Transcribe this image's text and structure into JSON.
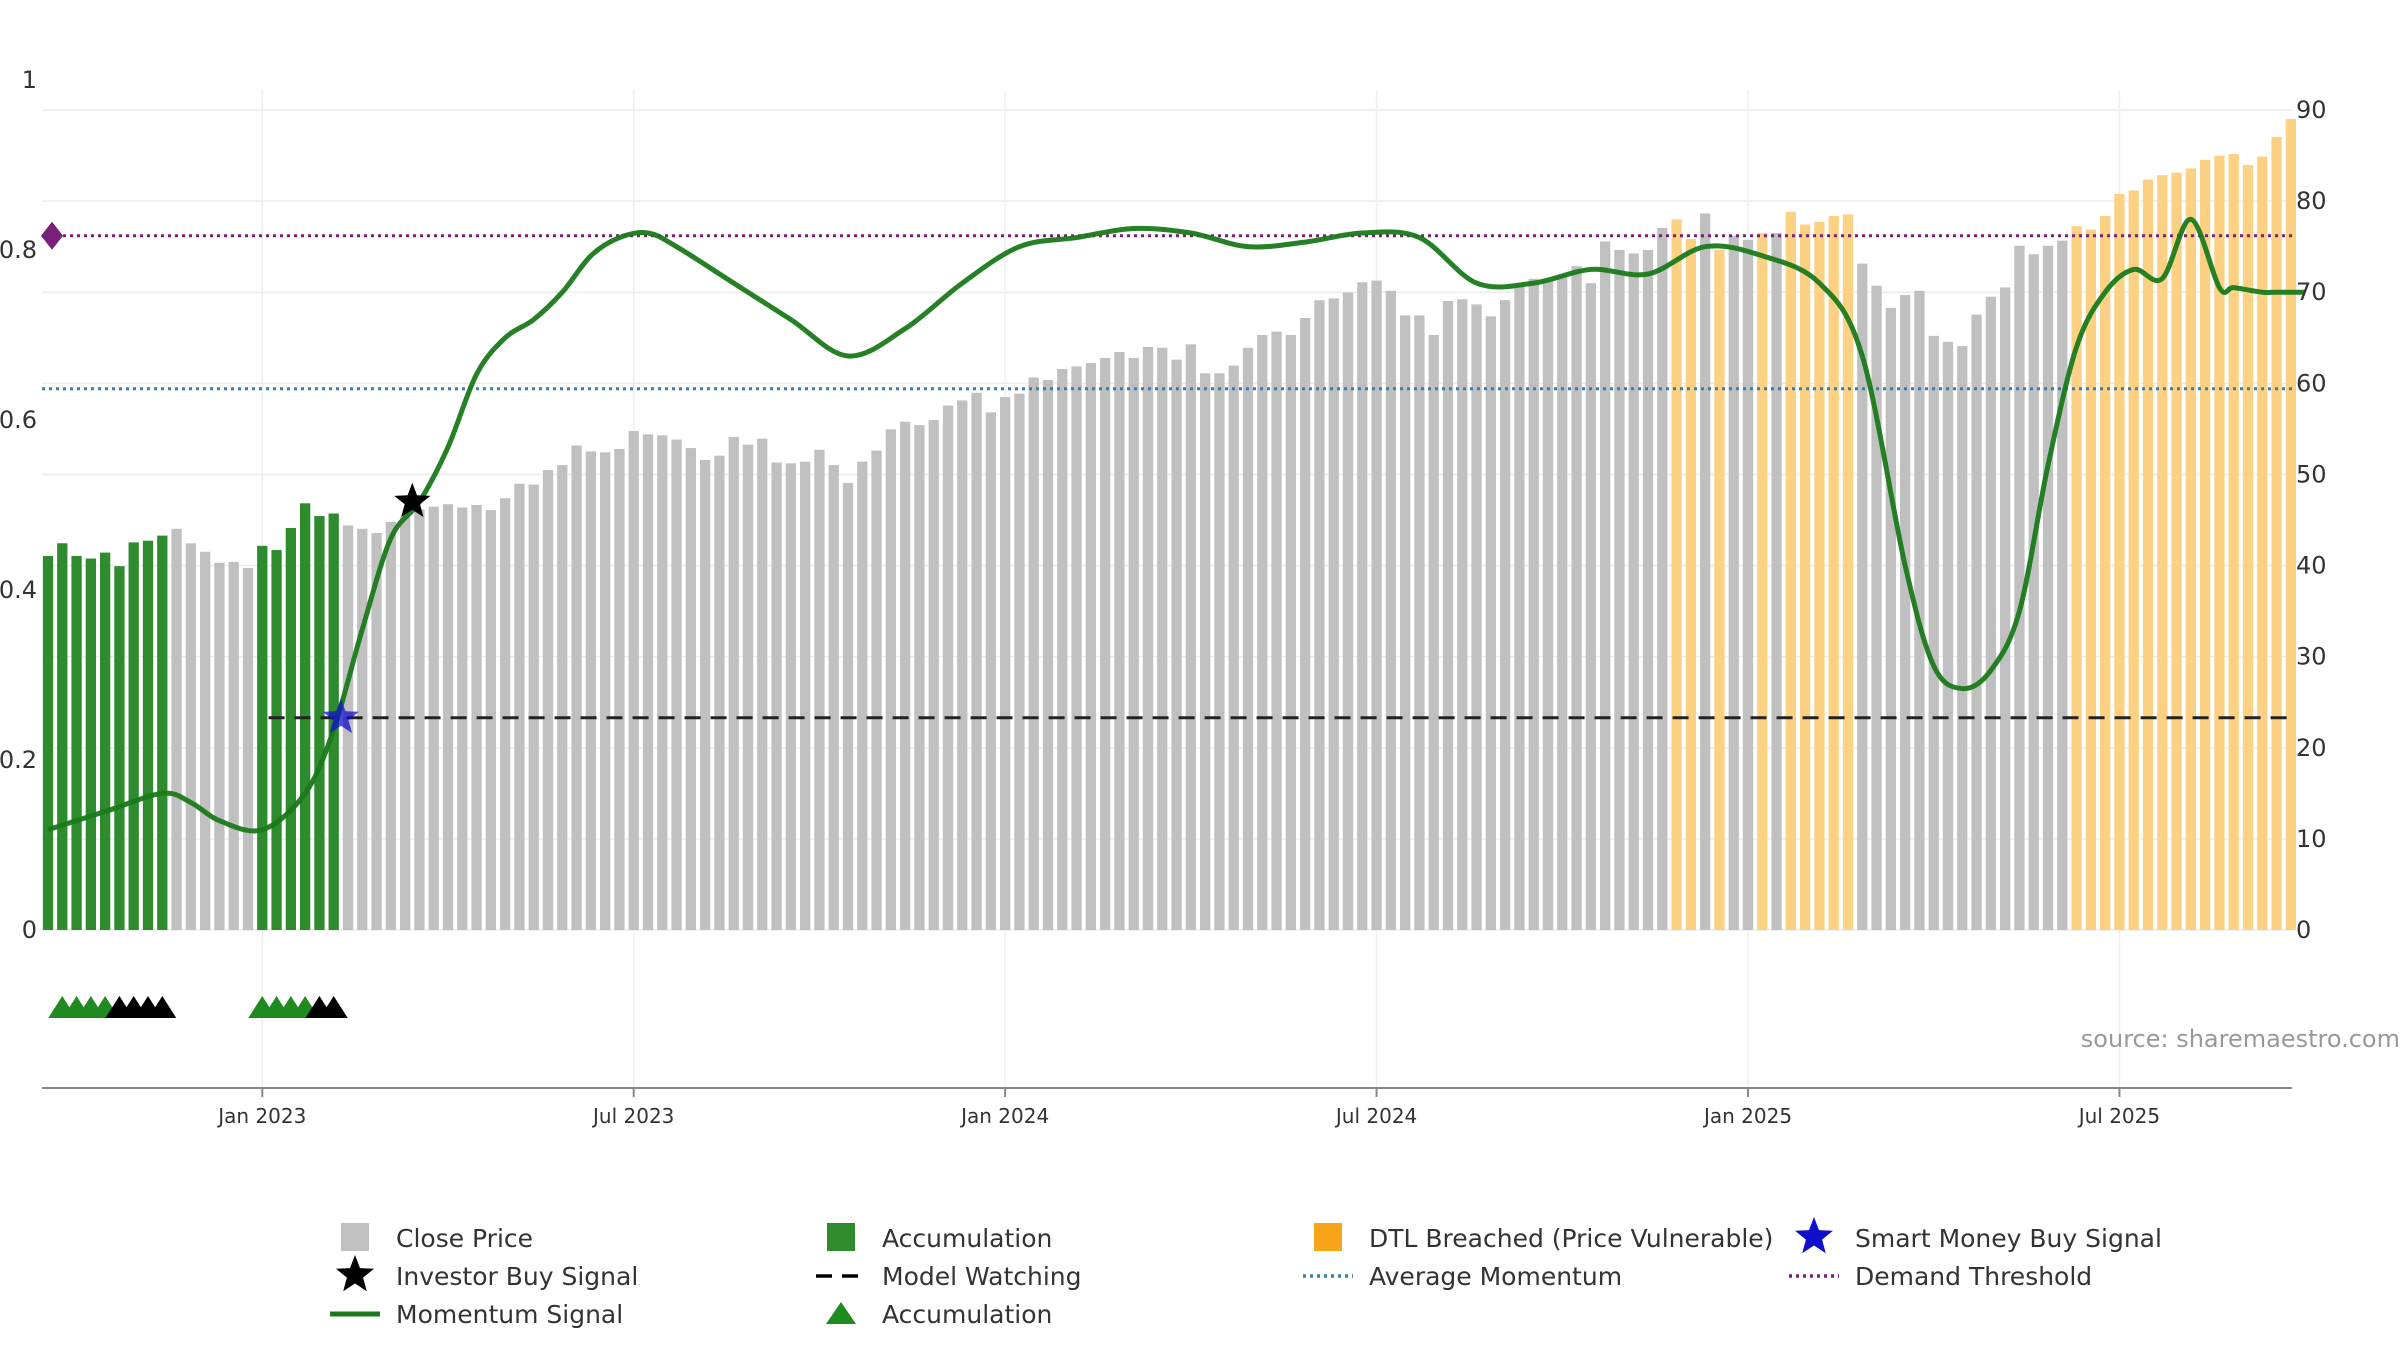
{
  "chart_data": {
    "type": "bar",
    "title": "",
    "source": "source: sharemaestro.com",
    "y_left": {
      "ticks": [
        "0",
        "0.2",
        "0.4",
        "0.6",
        "0.8",
        "1"
      ],
      "range": [
        0,
        1
      ]
    },
    "y_right": {
      "ticks": [
        "0",
        "10",
        "20",
        "30",
        "40",
        "50",
        "60",
        "70",
        "80",
        "90"
      ],
      "range": [
        0,
        92
      ]
    },
    "x_ticks": [
      "Jan 2023",
      "Jul 2023",
      "Jan 2024",
      "Jul 2024",
      "Jan 2025",
      "Jul 2025"
    ],
    "x_tick_weeks": [
      15,
      41,
      67,
      93,
      119,
      145
    ],
    "grid": true,
    "legend_position": "bottom",
    "colors": {
      "close_price": "#c0c0c0",
      "accumulation": "#2e8b2e",
      "dtl": "#fcd183",
      "momentum": "#1a7a1a",
      "average_momentum": "#3a7fa8",
      "demand_threshold": "#7a1f7a",
      "model_watching": "#222222",
      "smart_money": "#1010cc"
    },
    "bars_weekly": {
      "start_week": 0,
      "heights": [
        0.44,
        0.455,
        0.44,
        0.437,
        0.444,
        0.428,
        0.456,
        0.458,
        0.464,
        0.472,
        0.455,
        0.445,
        0.432,
        0.433,
        0.426,
        0.452,
        0.447,
        0.473,
        0.502,
        0.487,
        0.49,
        0.476,
        0.472,
        0.467,
        0.48,
        0.486,
        0.495,
        0.498,
        0.501,
        0.497,
        0.5,
        0.494,
        0.508,
        0.525,
        0.524,
        0.541,
        0.547,
        0.57,
        0.563,
        0.562,
        0.566,
        0.587,
        0.583,
        0.582,
        0.577,
        0.567,
        0.553,
        0.558,
        0.58,
        0.571,
        0.578,
        0.55,
        0.549,
        0.551,
        0.565,
        0.547,
        0.526,
        0.551,
        0.564,
        0.589,
        0.598,
        0.594,
        0.6,
        0.617,
        0.623,
        0.632,
        0.609,
        0.627,
        0.631,
        0.65,
        0.647,
        0.66,
        0.663,
        0.667,
        0.673,
        0.68,
        0.673,
        0.686,
        0.685,
        0.671,
        0.689,
        0.655,
        0.655,
        0.664,
        0.685,
        0.7,
        0.704,
        0.7,
        0.72,
        0.741,
        0.743,
        0.75,
        0.762,
        0.764,
        0.752,
        0.723,
        0.723,
        0.7,
        0.74,
        0.742,
        0.736,
        0.722,
        0.741,
        0.757,
        0.766,
        0.765,
        0.771,
        0.781,
        0.761,
        0.81,
        0.8,
        0.796,
        0.8,
        0.826,
        0.836,
        0.813,
        0.843,
        0.8,
        0.817,
        0.812,
        0.82,
        0.82,
        0.845,
        0.83,
        0.833,
        0.84,
        0.842,
        0.784,
        0.758,
        0.732,
        0.747,
        0.752,
        0.699,
        0.692,
        0.687,
        0.724,
        0.745,
        0.756,
        0.805,
        0.795,
        0.805,
        0.811,
        0.828,
        0.824,
        0.84,
        0.866,
        0.87,
        0.883,
        0.888,
        0.891,
        0.896,
        0.906,
        0.911,
        0.913,
        0.9,
        0.91,
        0.933,
        0.954
      ],
      "category": [
        "accumulation",
        "accumulation",
        "accumulation",
        "accumulation",
        "accumulation",
        "accumulation",
        "accumulation",
        "accumulation",
        "accumulation",
        "close",
        "close",
        "close",
        "close",
        "close",
        "close",
        "accumulation",
        "accumulation",
        "accumulation",
        "accumulation",
        "accumulation",
        "accumulation",
        "close",
        "close",
        "close",
        "close",
        "close",
        "close",
        "close",
        "close",
        "close",
        "close",
        "close",
        "close",
        "close",
        "close",
        "close",
        "close",
        "close",
        "close",
        "close",
        "close",
        "close",
        "close",
        "close",
        "close",
        "close",
        "close",
        "close",
        "close",
        "close",
        "close",
        "close",
        "close",
        "close",
        "close",
        "close",
        "close",
        "close",
        "close",
        "close",
        "close",
        "close",
        "close",
        "close",
        "close",
        "close",
        "close",
        "close",
        "close",
        "close",
        "close",
        "close",
        "close",
        "close",
        "close",
        "close",
        "close",
        "close",
        "close",
        "close",
        "close",
        "close",
        "close",
        "close",
        "close",
        "close",
        "close",
        "close",
        "close",
        "close",
        "close",
        "close",
        "close",
        "close",
        "close",
        "close",
        "close",
        "close",
        "close",
        "close",
        "close",
        "close",
        "close",
        "close",
        "close",
        "close",
        "close",
        "close",
        "close",
        "close",
        "close",
        "close",
        "close",
        "close",
        "dtl",
        "dtl",
        "close",
        "dtl",
        "close",
        "close",
        "dtl",
        "close",
        "dtl",
        "dtl",
        "dtl",
        "dtl",
        "dtl",
        "close",
        "close",
        "close",
        "close",
        "close",
        "close",
        "close",
        "close",
        "close",
        "close",
        "close",
        "close",
        "close",
        "close",
        "close",
        "dtl",
        "dtl",
        "dtl",
        "dtl",
        "dtl",
        "dtl",
        "dtl",
        "dtl",
        "dtl",
        "dtl",
        "dtl",
        "dtl",
        "dtl",
        "dtl",
        "dtl",
        "dtl"
      ]
    },
    "momentum_signal": {
      "x_weeks": [
        0,
        4,
        8,
        10,
        12,
        15,
        18,
        20,
        22,
        24,
        26,
        28,
        30,
        32,
        34,
        36,
        38,
        40,
        42,
        44,
        48,
        52,
        56,
        60,
        64,
        68,
        72,
        76,
        80,
        84,
        88,
        92,
        96,
        100,
        104,
        108,
        112,
        116,
        120,
        124,
        127,
        130,
        132,
        134,
        136,
        138,
        140,
        142,
        144,
        146,
        148,
        150,
        152,
        153,
        155,
        156,
        158
      ],
      "values": [
        11,
        13,
        15,
        14,
        12,
        11,
        15,
        22,
        33,
        43,
        47,
        53,
        61,
        65,
        67,
        70,
        74,
        76,
        76.5,
        75,
        71,
        67,
        63,
        66,
        71,
        75,
        76,
        77,
        76.5,
        75,
        75.5,
        76.5,
        76,
        71,
        71,
        72.5,
        72,
        75,
        74,
        71,
        63,
        40,
        29,
        26.5,
        28.5,
        35,
        51,
        64,
        70,
        72.5,
        71.5,
        78,
        70.5,
        70.5,
        70,
        70,
        70
      ]
    },
    "average_momentum": 59.4,
    "demand_threshold": 76.2,
    "model_watching": {
      "value": 23.3,
      "from_week": 16
    },
    "investor_buy_signal": {
      "week": 25.5,
      "value": 47
    },
    "smart_money_buy_signal": {
      "week": 20.5,
      "value": 23.3
    },
    "markers": {
      "accumulation_weeks": [
        1,
        2,
        3,
        4,
        15,
        16,
        17,
        18
      ],
      "investor_weeks": [
        5,
        6,
        7,
        8,
        19,
        20
      ]
    }
  },
  "legend": [
    {
      "label": "Close Price",
      "symbol": "square-gray"
    },
    {
      "label": "Accumulation",
      "symbol": "square-green"
    },
    {
      "label": "DTL Breached (Price Vulnerable)",
      "symbol": "square-orange"
    },
    {
      "label": "Smart Money Buy Signal",
      "symbol": "star-blue"
    },
    {
      "label": "Investor Buy Signal",
      "symbol": "star-black"
    },
    {
      "label": "Model Watching",
      "symbol": "dash-black"
    },
    {
      "label": "Average Momentum",
      "symbol": "dot-blue"
    },
    {
      "label": "Demand Threshold",
      "symbol": "dot-purple"
    },
    {
      "label": "Momentum Signal",
      "symbol": "line-green"
    },
    {
      "label": "Accumulation",
      "symbol": "triangle-green"
    }
  ]
}
